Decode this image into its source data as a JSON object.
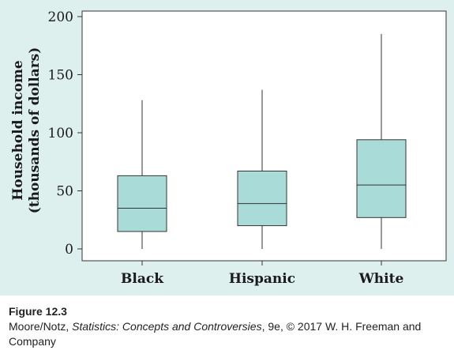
{
  "chart_data": {
    "type": "boxplot",
    "ylabel_line1": "Household income",
    "ylabel_line2": "(thousands of dollars)",
    "ylim": [
      0,
      200
    ],
    "yticks": [
      0,
      50,
      100,
      150,
      200
    ],
    "categories": [
      "Black",
      "Hispanic",
      "White"
    ],
    "boxes": [
      {
        "category": "Black",
        "min": 0,
        "q1": 15,
        "median": 35,
        "q3": 63,
        "max": 128
      },
      {
        "category": "Hispanic",
        "min": 0,
        "q1": 20,
        "median": 39,
        "q3": 67,
        "max": 137
      },
      {
        "category": "White",
        "min": 0,
        "q1": 27,
        "median": 55,
        "q3": 94,
        "max": 185
      }
    ],
    "grid": false,
    "colors": {
      "box_fill": "#a9dcd8",
      "box_stroke": "#333333",
      "panel_background": "#ddf0ee",
      "plot_background": "#ffffff"
    }
  },
  "caption": {
    "figure_label": "Figure 12.3",
    "credit_prefix": "Moore/Notz, ",
    "credit_title": "Statistics: Concepts and Controversies",
    "credit_suffix": ", 9e, © 2017 W. H. Freeman and Company"
  }
}
